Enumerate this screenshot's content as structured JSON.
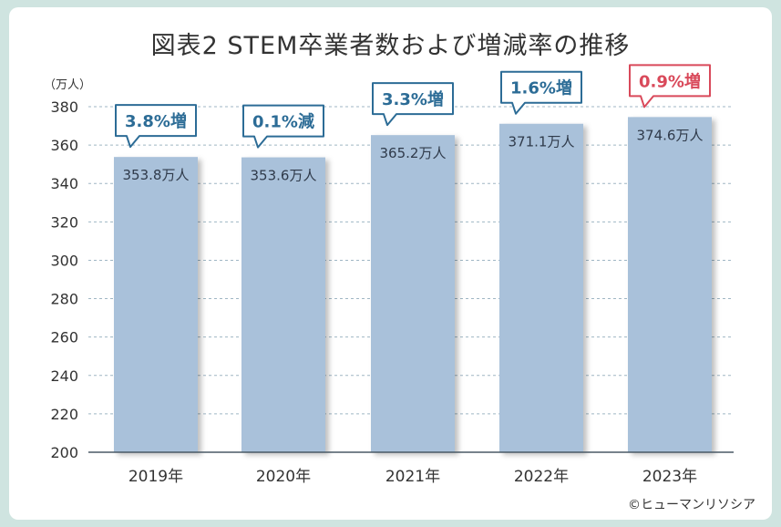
{
  "chart_data": {
    "type": "bar",
    "title": "図表2 STEM卒業者数および増減率の推移",
    "unit_label": "（万人）",
    "credit": "©ヒューマンリソシア",
    "categories": [
      "2019年",
      "2020年",
      "2021年",
      "2022年",
      "2023年"
    ],
    "values": [
      353.8,
      353.6,
      365.2,
      371.1,
      374.6
    ],
    "data_labels": [
      "353.8万人",
      "353.6万人",
      "365.2万人",
      "371.1万人",
      "374.6万人"
    ],
    "change_labels": [
      "3.8%増",
      "0.1%減",
      "3.3%増",
      "1.6%増",
      "0.9%増"
    ],
    "change_colors": [
      "#2c6c96",
      "#2c6c96",
      "#2c6c96",
      "#2c6c96",
      "#d9495a"
    ],
    "ylim": [
      200,
      380
    ],
    "yticks": [
      200,
      220,
      240,
      260,
      280,
      300,
      320,
      340,
      360,
      380
    ],
    "bar_color": "#a9c1da",
    "grid": true,
    "xlabel": "",
    "ylabel": "万人"
  }
}
